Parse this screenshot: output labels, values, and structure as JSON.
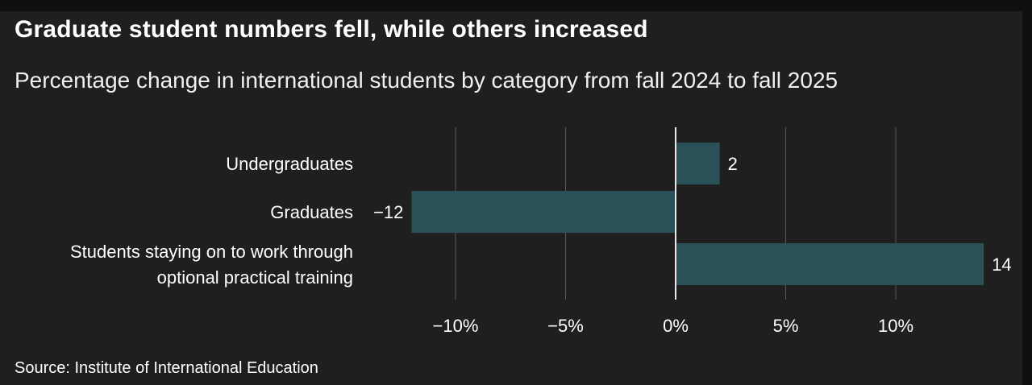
{
  "header": {
    "title": "Graduate student numbers fell, while others increased",
    "subtitle": "Percentage change in international students by category from fall 2024 to fall 2025"
  },
  "footer": {
    "source": "Source: Institute of International Education"
  },
  "colors": {
    "background": "#1f1f1f",
    "bar": "#2b5158",
    "grid": "#5a5a5a",
    "zero_line": "#e8e8e8",
    "text": "#ffffff"
  },
  "chart_data": {
    "type": "bar",
    "orientation": "horizontal",
    "title": "Graduate student numbers fell, while others increased",
    "subtitle": "Percentage change in international students by category from fall 2024 to fall 2025",
    "categories": [
      [
        "Undergraduates"
      ],
      [
        "Graduates"
      ],
      [
        "Students staying on to work through",
        "optional practical training"
      ]
    ],
    "values": [
      2,
      -12,
      14
    ],
    "value_labels": [
      "2",
      "−12",
      "14"
    ],
    "xlim": [
      -15,
      14
    ],
    "xticks": [
      -10,
      -5,
      0,
      5,
      10
    ],
    "xtick_labels": [
      "−10%",
      "−5%",
      "0%",
      "5%",
      "10%"
    ],
    "grid": true,
    "legend": "none",
    "xlabel": "",
    "ylabel": ""
  }
}
